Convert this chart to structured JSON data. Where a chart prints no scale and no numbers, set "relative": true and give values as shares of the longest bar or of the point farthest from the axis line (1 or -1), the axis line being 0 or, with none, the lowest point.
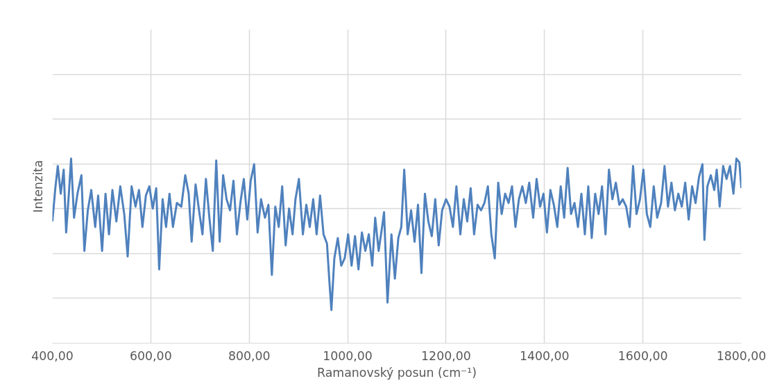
{
  "chart_data": {
    "type": "line",
    "relative": true,
    "xlabel": "Ramanovský posun (cm⁻¹)",
    "ylabel": "Intenzita",
    "xlim": [
      400,
      1800
    ],
    "xticks": [
      {
        "value": 400,
        "label": "400,00"
      },
      {
        "value": 600,
        "label": "600,00"
      },
      {
        "value": 800,
        "label": "800,00"
      },
      {
        "value": 1000,
        "label": "1000,00"
      },
      {
        "value": 1200,
        "label": "1200,00"
      },
      {
        "value": 1400,
        "label": "1400,00"
      },
      {
        "value": 1600,
        "label": "1600,00"
      },
      {
        "value": 1800,
        "label": "1800,00"
      }
    ],
    "tick_labels": "x",
    "grid": true,
    "marker": "none",
    "line_style": "solid",
    "series": [
      {
        "color": "#4f81bd",
        "x": [
          400,
          406,
          411,
          417,
          423,
          428,
          434,
          438,
          444,
          451,
          459,
          465,
          472,
          479,
          487,
          493,
          501,
          508,
          515,
          522,
          530,
          538,
          546,
          553,
          561,
          569,
          576,
          583,
          590,
          597,
          604,
          611,
          617,
          624,
          631,
          638,
          645,
          653,
          662,
          670,
          677,
          683,
          691,
          698,
          705,
          712,
          719,
          726,
          733,
          740,
          747,
          754,
          761,
          768,
          775,
          782,
          789,
          796,
          803,
          810,
          817,
          824,
          832,
          839,
          846,
          853,
          860,
          867,
          874,
          881,
          888,
          894,
          901,
          909,
          916,
          923,
          930,
          937,
          944,
          951,
          958,
          963,
          967,
          973,
          980,
          987,
          994,
          1001,
          1008,
          1015,
          1022,
          1029,
          1036,
          1043,
          1050,
          1056,
          1063,
          1070,
          1074,
          1081,
          1089,
          1096,
          1103,
          1109,
          1115,
          1122,
          1129,
          1136,
          1143,
          1150,
          1157,
          1164,
          1171,
          1178,
          1185,
          1192,
          1200,
          1207,
          1214,
          1221,
          1229,
          1236,
          1243,
          1250,
          1257,
          1264,
          1271,
          1278,
          1285,
          1292,
          1299,
          1306,
          1313,
          1320,
          1327,
          1334,
          1341,
          1348,
          1355,
          1362,
          1369,
          1377,
          1384,
          1391,
          1398,
          1405,
          1412,
          1419,
          1426,
          1433,
          1440,
          1447,
          1454,
          1461,
          1468,
          1475,
          1482,
          1489,
          1496,
          1503,
          1510,
          1517,
          1524,
          1531,
          1538,
          1545,
          1552,
          1559,
          1566,
          1573,
          1580,
          1587,
          1594,
          1601,
          1608,
          1615,
          1622,
          1629,
          1637,
          1644,
          1651,
          1658,
          1665,
          1672,
          1679,
          1686,
          1693,
          1700,
          1707,
          1714,
          1721,
          1725,
          1731,
          1738,
          1745,
          1750,
          1756,
          1763,
          1770,
          1777,
          1784,
          1790,
          1796,
          1800
        ],
        "values": [
          0.66,
          0.84,
          0.96,
          0.81,
          0.94,
          0.6,
          0.83,
          1.0,
          0.68,
          0.81,
          0.91,
          0.5,
          0.72,
          0.83,
          0.63,
          0.8,
          0.5,
          0.81,
          0.59,
          0.83,
          0.66,
          0.85,
          0.7,
          0.47,
          0.85,
          0.74,
          0.83,
          0.63,
          0.8,
          0.85,
          0.73,
          0.84,
          0.4,
          0.78,
          0.63,
          0.81,
          0.63,
          0.76,
          0.74,
          0.91,
          0.81,
          0.55,
          0.86,
          0.72,
          0.59,
          0.89,
          0.68,
          0.5,
          0.99,
          0.55,
          0.91,
          0.78,
          0.72,
          0.88,
          0.59,
          0.76,
          0.89,
          0.67,
          0.88,
          0.97,
          0.6,
          0.78,
          0.68,
          0.75,
          0.37,
          0.74,
          0.63,
          0.85,
          0.53,
          0.73,
          0.59,
          0.78,
          0.89,
          0.59,
          0.75,
          0.63,
          0.78,
          0.59,
          0.8,
          0.59,
          0.54,
          0.33,
          0.18,
          0.46,
          0.57,
          0.42,
          0.46,
          0.59,
          0.42,
          0.58,
          0.4,
          0.6,
          0.5,
          0.59,
          0.42,
          0.68,
          0.5,
          0.63,
          0.71,
          0.22,
          0.59,
          0.35,
          0.57,
          0.63,
          0.94,
          0.59,
          0.72,
          0.55,
          0.75,
          0.38,
          0.81,
          0.66,
          0.58,
          0.78,
          0.53,
          0.72,
          0.78,
          0.74,
          0.63,
          0.85,
          0.59,
          0.78,
          0.66,
          0.84,
          0.59,
          0.75,
          0.72,
          0.76,
          0.85,
          0.59,
          0.46,
          0.87,
          0.7,
          0.81,
          0.76,
          0.85,
          0.63,
          0.78,
          0.85,
          0.76,
          0.87,
          0.68,
          0.89,
          0.74,
          0.81,
          0.6,
          0.83,
          0.75,
          0.63,
          0.85,
          0.68,
          0.95,
          0.7,
          0.76,
          0.63,
          0.81,
          0.59,
          0.85,
          0.57,
          0.81,
          0.7,
          0.85,
          0.59,
          0.94,
          0.78,
          0.87,
          0.75,
          0.78,
          0.74,
          0.63,
          0.96,
          0.7,
          0.78,
          0.94,
          0.7,
          0.63,
          0.85,
          0.68,
          0.76,
          0.96,
          0.74,
          0.87,
          0.72,
          0.81,
          0.74,
          0.87,
          0.67,
          0.85,
          0.76,
          0.9,
          0.97,
          0.56,
          0.85,
          0.91,
          0.83,
          0.94,
          0.74,
          0.96,
          0.89,
          0.96,
          0.81,
          1.0,
          0.98,
          0.84
        ]
      }
    ]
  }
}
